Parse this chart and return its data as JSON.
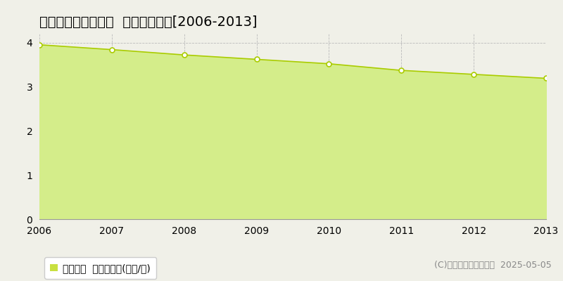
{
  "title": "倉敷市船穂町柳井原  公示地価推移[2006-2013]",
  "years": [
    2006,
    2007,
    2008,
    2009,
    2010,
    2011,
    2012,
    2013
  ],
  "values": [
    3.95,
    3.84,
    3.72,
    3.62,
    3.52,
    3.37,
    3.28,
    3.19
  ],
  "ylim": [
    0,
    4.2
  ],
  "yticks": [
    0,
    1,
    2,
    3,
    4
  ],
  "line_color": "#aacc00",
  "fill_color": "#d4ed8a",
  "marker_color": "#ffffff",
  "marker_edge_color": "#aacc00",
  "bg_color": "#f0f0e8",
  "grid_color": "#bbbbbb",
  "legend_label": "公示地価  平均坪単価(万円/坪)",
  "legend_square_color": "#c8e040",
  "copyright_text": "(C)土地価格ドットコム  2025-05-05",
  "title_fontsize": 14,
  "axis_fontsize": 10,
  "legend_fontsize": 10,
  "copyright_fontsize": 9
}
